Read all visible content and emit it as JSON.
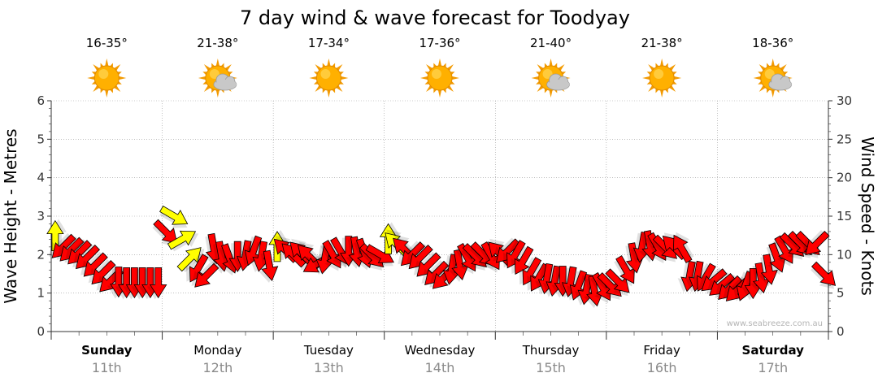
{
  "title": "7 day wind & wave forecast for Toodyay",
  "days": [
    {
      "name": "Sunday",
      "date": "11th",
      "temp": "16-35°",
      "icon": "sun-icon",
      "bold": true
    },
    {
      "name": "Monday",
      "date": "12th",
      "temp": "21-38°",
      "icon": "sun-cloud-icon",
      "bold": false
    },
    {
      "name": "Tuesday",
      "date": "13th",
      "temp": "17-34°",
      "icon": "sun-icon",
      "bold": false
    },
    {
      "name": "Wednesday",
      "date": "14th",
      "temp": "17-36°",
      "icon": "sun-icon",
      "bold": false
    },
    {
      "name": "Thursday",
      "date": "15th",
      "temp": "21-40°",
      "icon": "sun-cloud-icon",
      "bold": false
    },
    {
      "name": "Friday",
      "date": "16th",
      "temp": "21-38°",
      "icon": "sun-icon",
      "bold": false
    },
    {
      "name": "Saturday",
      "date": "17th",
      "temp": "18-36°",
      "icon": "sun-cloud-icon",
      "bold": true
    }
  ],
  "credit": "www.seabreeze.com.au",
  "colors": {
    "strong_wind": "#ff0000",
    "light_wind": "#ffff00",
    "arrow_stroke": "#000000",
    "sun": "#ffb000",
    "cloud": "#c8c8c8",
    "grid": "#999999"
  },
  "chart_data": {
    "type": "line",
    "ylabel": "Wave Height - Metres",
    "y2label": "Wind Speed - Knots",
    "ylim": [
      0,
      6
    ],
    "y2lim": [
      0,
      30
    ],
    "yticks": [
      "0",
      "1",
      "2",
      "3",
      "4",
      "5",
      "6"
    ],
    "y2ticks": [
      "0",
      "5",
      "10",
      "15",
      "20",
      "25",
      "30"
    ],
    "grid": true,
    "series": [
      {
        "values": [
          12.4,
          11.0,
          10.6,
          10.2,
          9.6,
          8.6,
          7.6,
          6.6,
          6.5,
          6.4,
          6.4,
          6.4,
          6.4,
          6.4,
          12.9,
          15.0,
          12.0,
          9.5,
          8.2,
          7.2,
          10.8,
          9.8,
          9.5,
          9.8,
          9.9,
          10.5,
          9.8,
          8.6,
          11.0,
          10.6,
          10.0,
          10.2,
          9.8,
          8.8,
          9.5,
          10.0,
          10.4,
          10.5,
          10.4,
          10.2,
          9.8,
          10.0,
          12.0,
          11.4,
          10.7,
          10.0,
          9.6,
          8.6,
          7.5,
          7.0,
          8.1,
          8.7,
          9.6,
          9.8,
          10.0,
          9.8,
          10.2,
          10.4,
          10.0,
          9.2,
          7.8,
          7.0,
          6.9,
          6.6,
          6.6,
          6.5,
          6.0,
          5.5,
          5.3,
          5.8,
          6.0,
          6.5,
          8.0,
          9.6,
          11.0,
          11.2,
          11.0,
          10.9,
          11.0,
          10.8,
          7.2,
          7.2,
          7.0,
          6.6,
          6.0,
          5.6,
          5.4,
          5.9,
          6.3,
          7.0,
          8.1,
          9.6,
          10.6,
          11.2,
          11.4,
          11.4,
          11.4,
          7.4
        ],
        "directions_deg": [
          -90,
          135,
          135,
          135,
          135,
          135,
          135,
          135,
          90,
          90,
          90,
          90,
          90,
          90,
          45,
          30,
          -30,
          -45,
          120,
          135,
          80,
          80,
          70,
          90,
          100,
          110,
          100,
          80,
          -90,
          -135,
          -135,
          -135,
          -135,
          150,
          100,
          60,
          60,
          90,
          80,
          70,
          45,
          30,
          -90,
          -135,
          -135,
          135,
          135,
          135,
          135,
          135,
          100,
          80,
          60,
          45,
          45,
          60,
          -135,
          135,
          120,
          120,
          120,
          120,
          100,
          100,
          90,
          100,
          110,
          100,
          80,
          60,
          45,
          45,
          60,
          80,
          100,
          80,
          60,
          45,
          -135,
          -120,
          100,
          100,
          120,
          140,
          140,
          135,
          135,
          110,
          90,
          80,
          80,
          70,
          60,
          45,
          45,
          45,
          135,
          45
        ],
        "strength": [
          "light",
          "strong",
          "strong",
          "strong",
          "strong",
          "strong",
          "strong",
          "strong",
          "strong",
          "strong",
          "strong",
          "strong",
          "strong",
          "strong",
          "strong",
          "light",
          "light",
          "light",
          "strong",
          "strong",
          "strong",
          "strong",
          "strong",
          "strong",
          "strong",
          "strong",
          "strong",
          "strong",
          "light",
          "strong",
          "strong",
          "strong",
          "strong",
          "strong",
          "strong",
          "strong",
          "strong",
          "strong",
          "strong",
          "strong",
          "strong",
          "strong",
          "light",
          "light",
          "strong",
          "strong",
          "strong",
          "strong",
          "strong",
          "strong",
          "strong",
          "strong",
          "strong",
          "strong",
          "strong",
          "strong",
          "strong",
          "strong",
          "strong",
          "strong",
          "strong",
          "strong",
          "strong",
          "strong",
          "strong",
          "strong",
          "strong",
          "strong",
          "strong",
          "strong",
          "strong",
          "strong",
          "strong",
          "strong",
          "strong",
          "strong",
          "strong",
          "strong",
          "strong",
          "strong",
          "strong",
          "strong",
          "strong",
          "strong",
          "strong",
          "strong",
          "strong",
          "strong",
          "strong",
          "strong",
          "strong",
          "strong",
          "strong",
          "strong",
          "strong",
          "strong",
          "strong",
          "strong"
        ]
      }
    ]
  }
}
